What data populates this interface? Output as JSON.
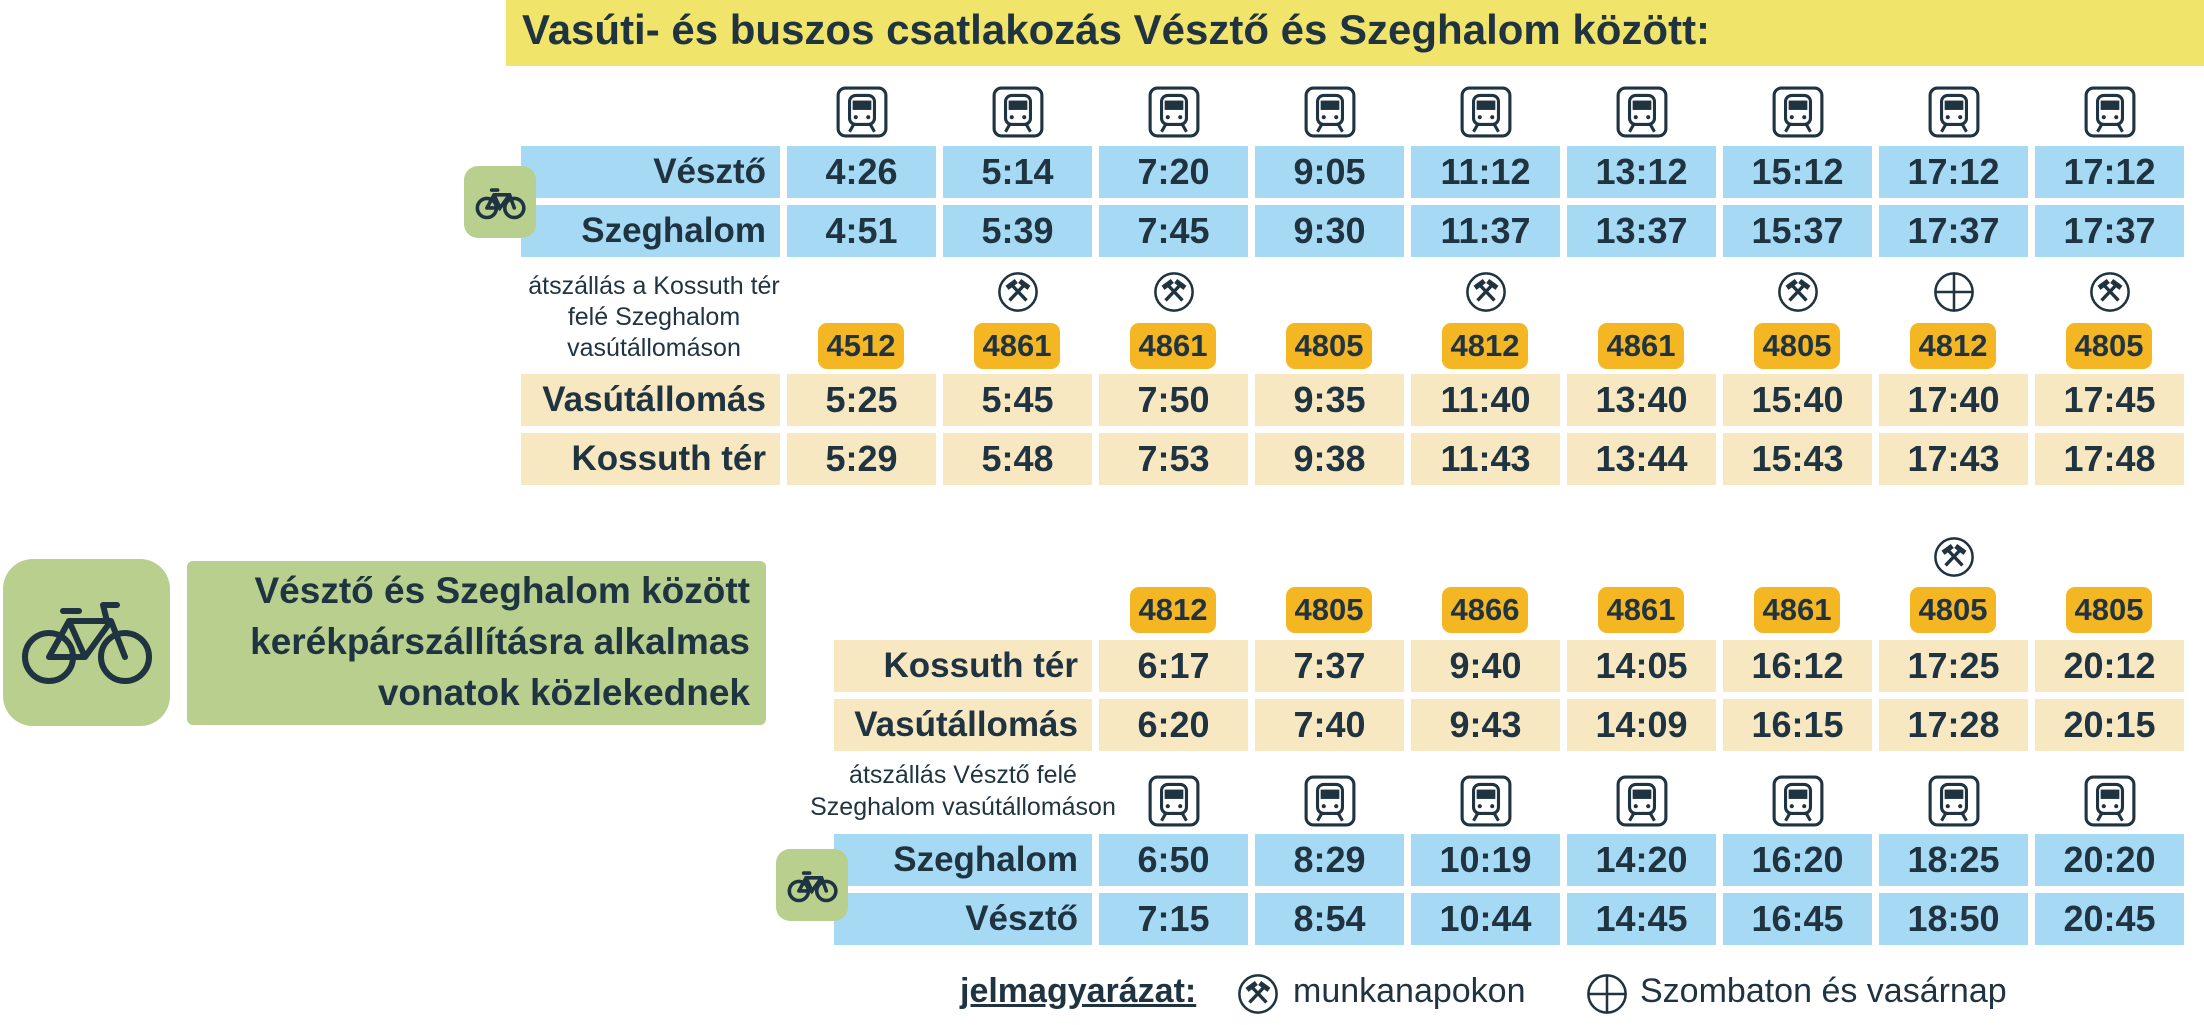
{
  "title": "Vasúti- és buszos csatlakozás Vésztő és Szeghalom között:",
  "table1": {
    "train_rows": [
      {
        "stop": "Vésztő",
        "times": [
          "4:26",
          "5:14",
          "7:20",
          "9:05",
          "11:12",
          "13:12",
          "15:12",
          "17:12",
          "17:12"
        ]
      },
      {
        "stop": "Szeghalom",
        "times": [
          "4:51",
          "5:39",
          "7:45",
          "9:30",
          "11:37",
          "13:37",
          "15:37",
          "17:37",
          "17:37"
        ]
      }
    ],
    "transfer_note": [
      "átszállás a Kossuth tér",
      "felé Szeghalom",
      "vasútállomáson"
    ],
    "day_marks": [
      null,
      "workday",
      "workday",
      null,
      "workday",
      null,
      "workday",
      "weekend",
      "workday"
    ],
    "buses": [
      "4512",
      "4861",
      "4861",
      "4805",
      "4812",
      "4861",
      "4805",
      "4812",
      "4805"
    ],
    "bus_rows": [
      {
        "stop": "Vasútállomás",
        "times": [
          "5:25",
          "5:45",
          "7:50",
          "9:35",
          "11:40",
          "13:40",
          "15:40",
          "17:40",
          "17:45"
        ]
      },
      {
        "stop": "Kossuth tér",
        "times": [
          "5:29",
          "5:48",
          "7:53",
          "9:38",
          "11:43",
          "13:44",
          "15:43",
          "17:43",
          "17:48"
        ]
      }
    ]
  },
  "bike_note": [
    "Vésztő és Szeghalom között",
    "kerékpárszállításra alkalmas",
    "vonatok közlekednek"
  ],
  "table2": {
    "day_marks": [
      null,
      null,
      null,
      null,
      null,
      "workday",
      null
    ],
    "buses": [
      "4812",
      "4805",
      "4866",
      "4861",
      "4861",
      "4805",
      "4805"
    ],
    "bus_rows": [
      {
        "stop": "Kossuth tér",
        "times": [
          "6:17",
          "7:37",
          "9:40",
          "14:05",
          "16:12",
          "17:25",
          "20:12"
        ]
      },
      {
        "stop": "Vasútállomás",
        "times": [
          "6:20",
          "7:40",
          "9:43",
          "14:09",
          "16:15",
          "17:28",
          "20:15"
        ]
      }
    ],
    "transfer_note": [
      "átszállás Vésztő felé",
      "Szeghalom vasútállomáson"
    ],
    "train_rows": [
      {
        "stop": "Szeghalom",
        "times": [
          "6:50",
          "8:29",
          "10:19",
          "14:20",
          "16:20",
          "18:25",
          "20:20"
        ]
      },
      {
        "stop": "Vésztő",
        "times": [
          "7:15",
          "8:54",
          "10:44",
          "14:45",
          "16:45",
          "18:50",
          "20:45"
        ]
      }
    ]
  },
  "legend": {
    "title": "jelmagyarázat:",
    "items": [
      {
        "symbol": "workday",
        "text": "munkanapokon"
      },
      {
        "symbol": "weekend",
        "text": "Szombaton és vasárnap"
      }
    ]
  }
}
